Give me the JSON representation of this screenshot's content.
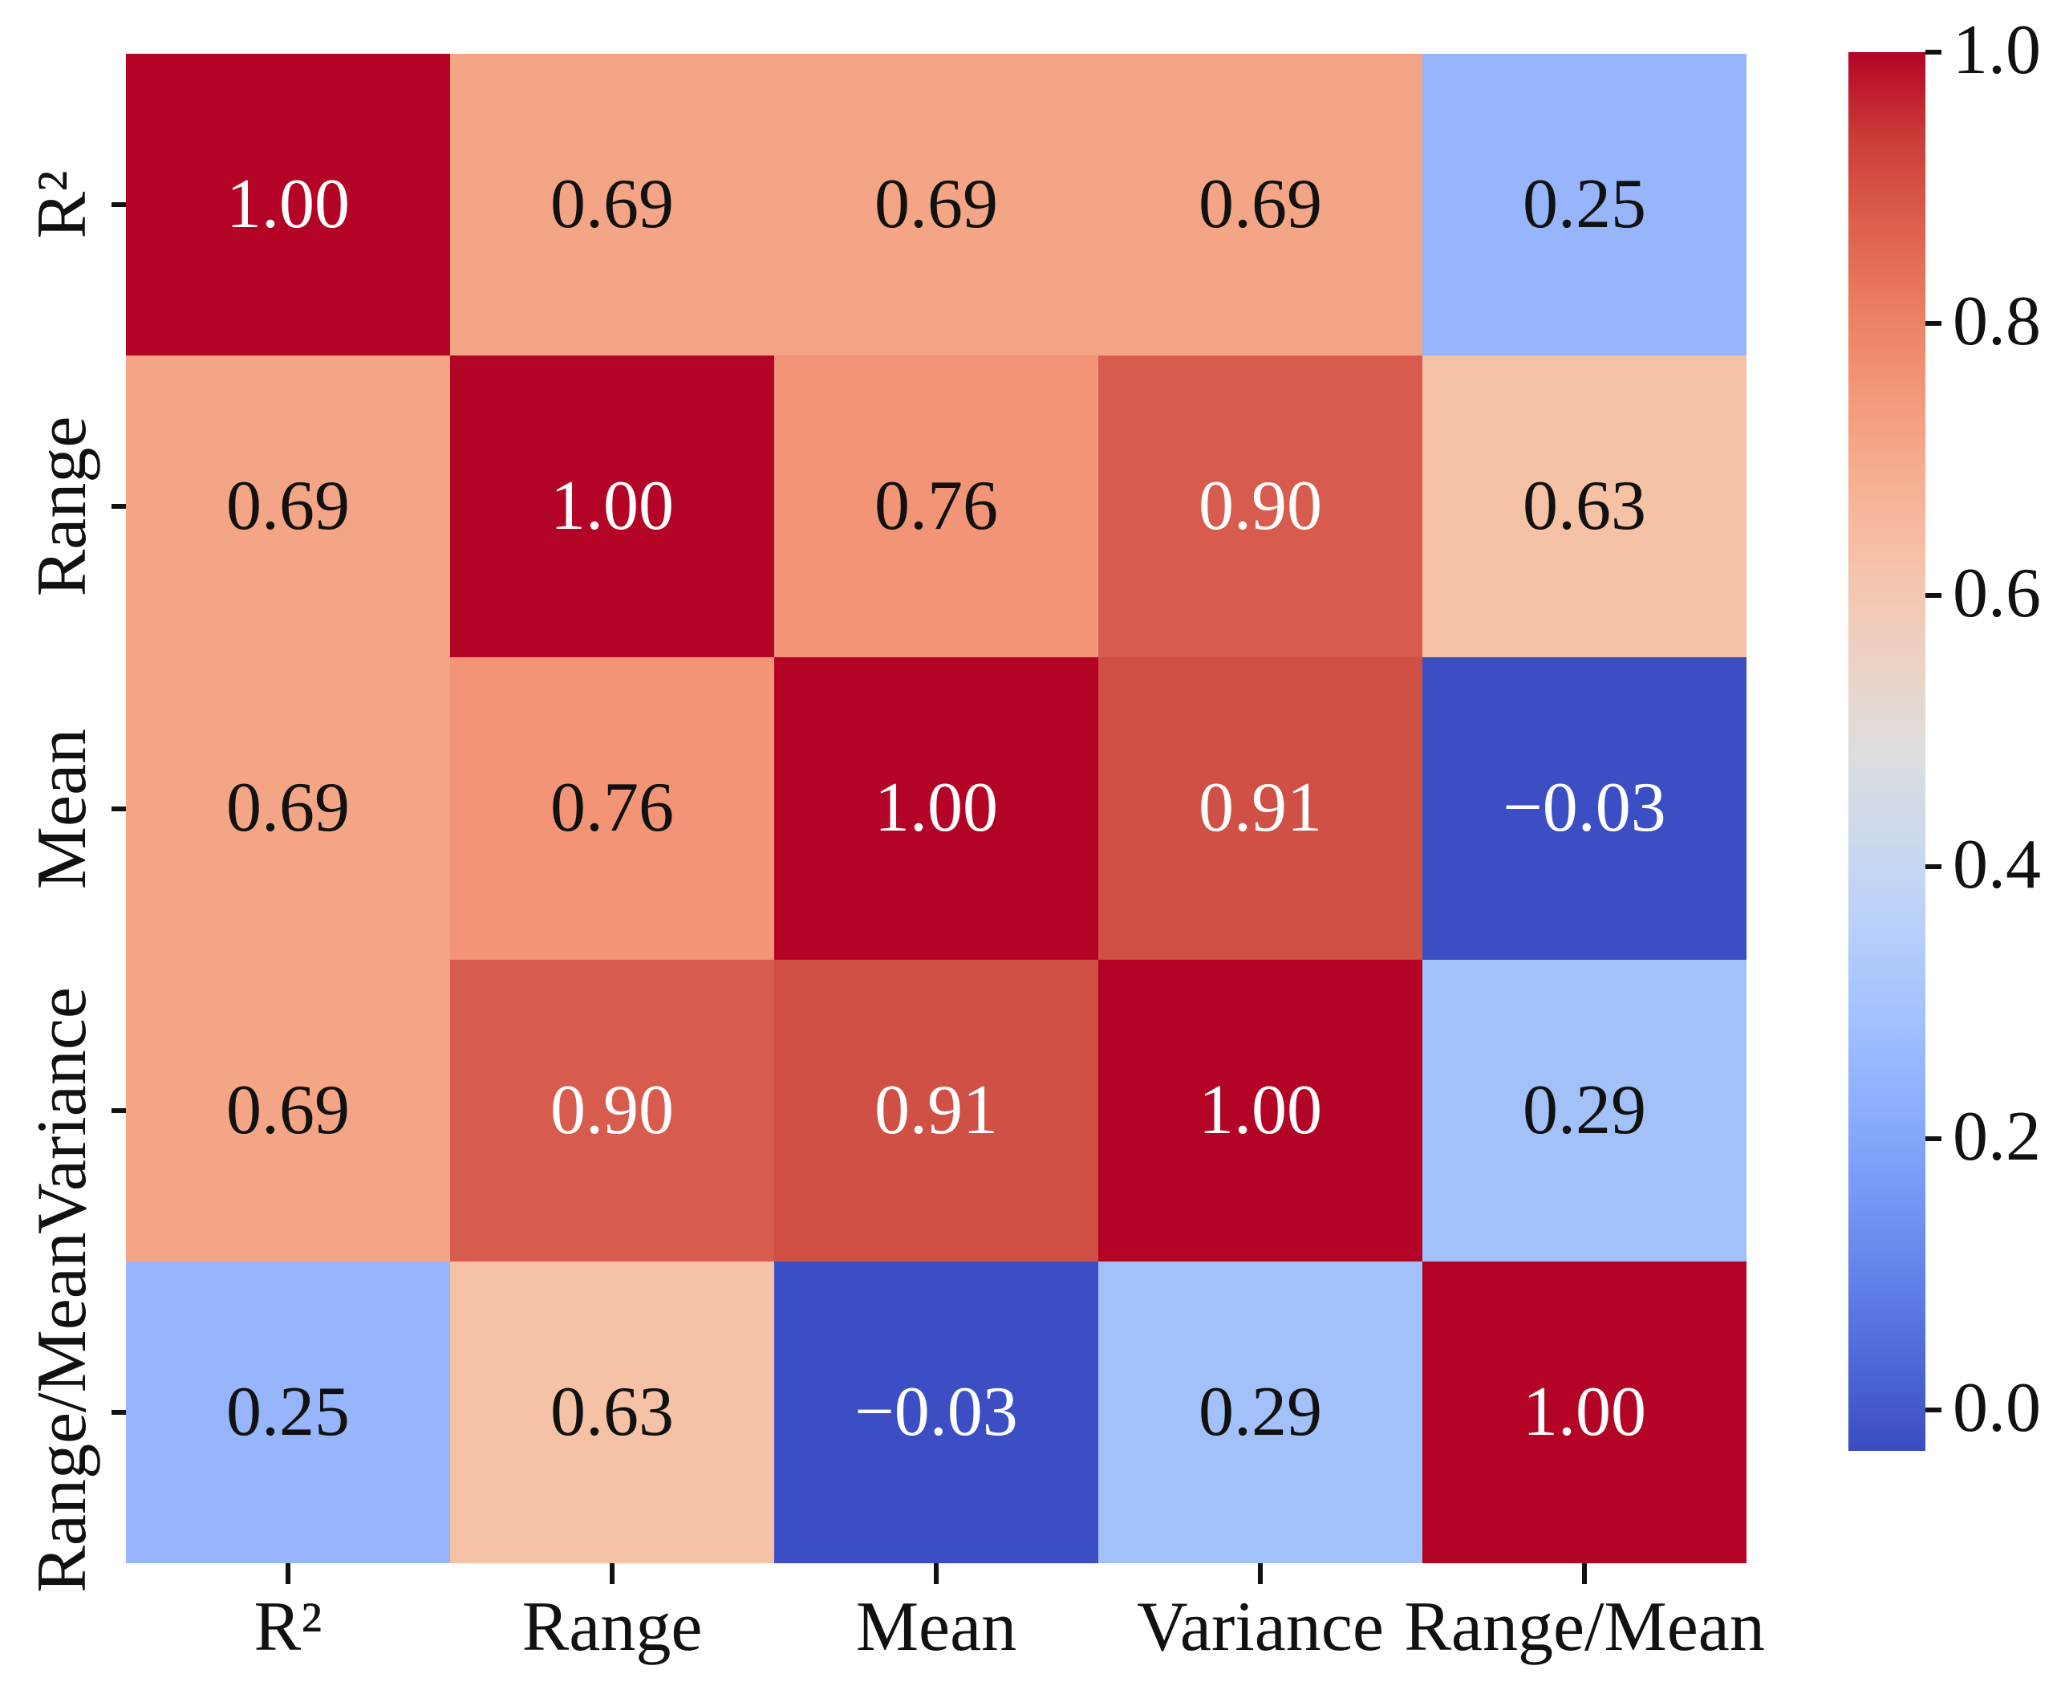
{
  "figure": {
    "background": "#ffffff",
    "axis_text_color": "#111111"
  },
  "chart_data": {
    "type": "heatmap",
    "title": "",
    "xlabel": "",
    "ylabel": "",
    "colormap": "coolwarm",
    "categories": [
      "R²",
      "Range",
      "Mean",
      "Variance",
      "Range/Mean"
    ],
    "x_tick_labels": [
      "R²",
      "Range",
      "Mean",
      "Variance",
      "Range/Mean"
    ],
    "y_tick_labels": [
      "R²",
      "Range",
      "Mean",
      "Variance",
      "Range/Mean"
    ],
    "matrix": [
      [
        1.0,
        0.69,
        0.69,
        0.69,
        0.25
      ],
      [
        0.69,
        1.0,
        0.76,
        0.9,
        0.63
      ],
      [
        0.69,
        0.76,
        1.0,
        0.91,
        -0.03
      ],
      [
        0.69,
        0.9,
        0.91,
        1.0,
        0.29
      ],
      [
        0.25,
        0.63,
        -0.03,
        0.29,
        1.0
      ]
    ],
    "cell_labels": [
      [
        "1.00",
        "0.69",
        "0.69",
        "0.69",
        "0.25"
      ],
      [
        "0.69",
        "1.00",
        "0.76",
        "0.90",
        "0.63"
      ],
      [
        "0.69",
        "0.76",
        "1.00",
        "0.91",
        "−0.03"
      ],
      [
        "0.69",
        "0.90",
        "0.91",
        "1.00",
        "0.29"
      ],
      [
        "0.25",
        "0.63",
        "−0.03",
        "0.29",
        "1.00"
      ]
    ],
    "cell_colors": [
      [
        "#B40426",
        "#F4A585",
        "#F4A585",
        "#F4A585",
        "#96B5FA"
      ],
      [
        "#F4A585",
        "#B40426",
        "#F29577",
        "#D75C4D",
        "#F5C2A6"
      ],
      [
        "#F4A585",
        "#F29577",
        "#B40426",
        "#D05045",
        "#3C4EC4"
      ],
      [
        "#F4A585",
        "#D75C4D",
        "#D05045",
        "#B40426",
        "#A2C1F8"
      ],
      [
        "#96B5FA",
        "#F5C2A6",
        "#3C4EC4",
        "#A2C1F8",
        "#B40426"
      ]
    ],
    "cell_text_colors": [
      [
        "#ffffff",
        "#111111",
        "#111111",
        "#111111",
        "#111111"
      ],
      [
        "#111111",
        "#ffffff",
        "#111111",
        "#ffffff",
        "#111111"
      ],
      [
        "#111111",
        "#111111",
        "#ffffff",
        "#ffffff",
        "#ffffff"
      ],
      [
        "#111111",
        "#ffffff",
        "#ffffff",
        "#ffffff",
        "#111111"
      ],
      [
        "#111111",
        "#111111",
        "#ffffff",
        "#111111",
        "#ffffff"
      ]
    ],
    "value_range": [
      -0.03,
      1.0
    ],
    "grid": false,
    "colorbar": {
      "position": "right",
      "vmin": -0.03,
      "vmax": 1.0,
      "tick_labels": [
        "1.0",
        "0.8",
        "0.6",
        "0.4",
        "0.2",
        "0.0"
      ],
      "tick_values": [
        1.0,
        0.8,
        0.6,
        0.4,
        0.2,
        0.0
      ],
      "gradient_stops": [
        {
          "pos": 0.0,
          "color": "#B40426"
        },
        {
          "pos": 6.25,
          "color": "#CB3E38"
        },
        {
          "pos": 12.5,
          "color": "#DE604D"
        },
        {
          "pos": 18.75,
          "color": "#EC7F63"
        },
        {
          "pos": 25.0,
          "color": "#F49A7B"
        },
        {
          "pos": 31.25,
          "color": "#F7B194"
        },
        {
          "pos": 37.5,
          "color": "#F5C4AD"
        },
        {
          "pos": 43.75,
          "color": "#ECD3C5"
        },
        {
          "pos": 50.0,
          "color": "#DDDDDD"
        },
        {
          "pos": 56.25,
          "color": "#CCD9EE"
        },
        {
          "pos": 62.5,
          "color": "#B8D0F9"
        },
        {
          "pos": 68.75,
          "color": "#A3C2FF"
        },
        {
          "pos": 75.0,
          "color": "#8DB0FE"
        },
        {
          "pos": 81.25,
          "color": "#779AF7"
        },
        {
          "pos": 87.5,
          "color": "#6282EA"
        },
        {
          "pos": 93.75,
          "color": "#4D68D7"
        },
        {
          "pos": 100.0,
          "color": "#3B4CC0"
        }
      ]
    }
  }
}
